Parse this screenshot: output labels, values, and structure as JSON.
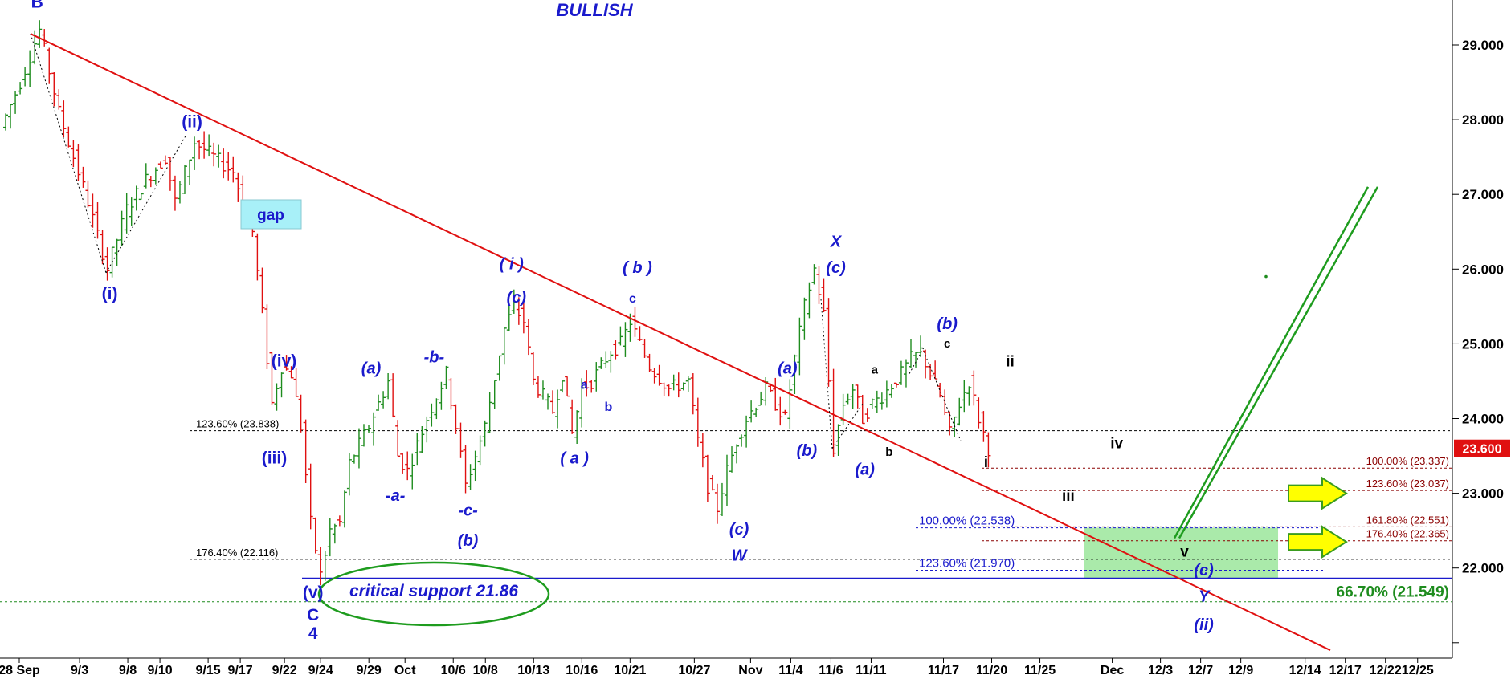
{
  "chart_data": {
    "type": "candlestick",
    "title": "BULLISH",
    "y_range": [
      20.9,
      29.7
    ],
    "y_ticks": [
      "29.000",
      "28.000",
      "27.000",
      "26.000",
      "25.000",
      "24.000",
      "23.000",
      "22.000"
    ],
    "x_ticks": [
      "28 Sep",
      "9/3",
      "9/8",
      "9/10",
      "9/15",
      "9/17",
      "9/22",
      "9/24",
      "9/29",
      "Oct",
      "10/6",
      "10/8",
      "10/13",
      "10/16",
      "10/21",
      "10/27",
      "Nov",
      "11/4",
      "11/6",
      "11/11",
      "11/17",
      "11/20",
      "11/25",
      "Dec",
      "12/3",
      "12/7",
      "12/9",
      "12/14",
      "12/17",
      "12/22",
      "12/25"
    ],
    "last_price": "23.600",
    "colors": {
      "up": "#1e8c1e",
      "down": "#e01010",
      "trendline": "#e01010",
      "wave_label": "#1a1acc",
      "support": "#1a1acc",
      "target_zone": "#9be69b",
      "arrow": "#ffff00"
    },
    "price_path": [
      [
        0,
        27.9
      ],
      [
        2,
        28.5
      ],
      [
        4,
        29.2
      ],
      [
        6,
        28.1
      ],
      [
        9,
        26.9
      ],
      [
        11,
        26.0
      ],
      [
        13,
        26.8
      ],
      [
        15,
        27.2
      ],
      [
        17,
        27.5
      ],
      [
        18,
        26.9
      ],
      [
        20,
        27.7
      ],
      [
        22,
        27.5
      ],
      [
        24,
        27.3
      ],
      [
        26,
        26.5
      ],
      [
        27,
        25.4
      ],
      [
        28,
        24.2
      ],
      [
        29,
        24.7
      ],
      [
        30,
        24.6
      ],
      [
        31,
        23.9
      ],
      [
        32,
        22.6
      ],
      [
        33,
        21.9
      ],
      [
        34,
        22.5
      ],
      [
        35,
        22.6
      ],
      [
        36,
        23.4
      ],
      [
        38,
        23.9
      ],
      [
        40,
        24.5
      ],
      [
        41,
        23.5
      ],
      [
        42,
        23.3
      ],
      [
        44,
        24.0
      ],
      [
        46,
        24.6
      ],
      [
        47,
        23.9
      ],
      [
        48,
        23.1
      ],
      [
        49,
        23.5
      ],
      [
        50,
        23.9
      ],
      [
        52,
        25.2
      ],
      [
        53,
        25.5
      ],
      [
        54,
        25.3
      ],
      [
        55,
        24.5
      ],
      [
        56,
        24.3
      ],
      [
        57,
        24.1
      ],
      [
        58,
        24.6
      ],
      [
        59,
        23.8
      ],
      [
        60,
        24.4
      ],
      [
        61,
        24.5
      ],
      [
        63,
        24.9
      ],
      [
        64,
        25.0
      ],
      [
        65,
        25.3
      ],
      [
        66,
        25.0
      ],
      [
        67,
        24.7
      ],
      [
        69,
        24.4
      ],
      [
        71,
        24.5
      ],
      [
        72,
        23.7
      ],
      [
        73,
        23.1
      ],
      [
        74,
        22.8
      ],
      [
        75,
        23.3
      ],
      [
        76,
        23.7
      ],
      [
        77,
        24.0
      ],
      [
        79,
        24.4
      ],
      [
        80,
        24.2
      ],
      [
        81,
        24.0
      ],
      [
        82,
        24.8
      ],
      [
        83,
        25.5
      ],
      [
        84,
        26.0
      ],
      [
        85,
        25.4
      ],
      [
        86,
        23.6
      ],
      [
        87,
        24.2
      ],
      [
        88,
        24.4
      ],
      [
        89,
        24.0
      ],
      [
        90,
        24.2
      ],
      [
        91,
        24.3
      ],
      [
        93,
        24.6
      ],
      [
        94,
        24.8
      ],
      [
        95,
        24.9
      ],
      [
        96,
        24.6
      ],
      [
        97,
        24.3
      ],
      [
        98,
        23.8
      ],
      [
        99,
        24.2
      ],
      [
        100,
        24.5
      ],
      [
        101,
        24.0
      ],
      [
        102,
        23.6
      ]
    ],
    "trendlines": [
      {
        "name": "primary-downtrend",
        "from": [
          4,
          29.15
        ],
        "to": [
          140,
          20.9
        ]
      },
      {
        "name": "projection-rise-1",
        "from": [
          122,
          22.4
        ],
        "to": [
          143,
          27.1
        ]
      },
      {
        "name": "projection-rise-2",
        "from": [
          124,
          22.4
        ],
        "to": [
          145,
          27.1
        ]
      }
    ],
    "fib_levels": [
      {
        "label": "123.60% (23.838)",
        "value": 23.838,
        "color": "#000000",
        "side": "left"
      },
      {
        "label": "176.40% (22.116)",
        "value": 22.116,
        "color": "#000000",
        "side": "left"
      },
      {
        "label": "100.00% (23.337)",
        "value": 23.337,
        "color": "#8b0000",
        "side": "right"
      },
      {
        "label": "123.60% (23.037)",
        "value": 23.037,
        "color": "#8b0000",
        "side": "right"
      },
      {
        "label": "161.80% (22.551)",
        "value": 22.551,
        "color": "#8b0000",
        "side": "right"
      },
      {
        "label": "176.40% (22.365)",
        "value": 22.365,
        "color": "#8b0000",
        "side": "right"
      },
      {
        "label": "100.00% (22.538)",
        "value": 22.538,
        "color": "#1a1acc",
        "side": "mid"
      },
      {
        "label": "123.60% (21.970)",
        "value": 21.97,
        "color": "#1a1acc",
        "side": "mid"
      }
    ],
    "support": {
      "label": "critical support 21.86",
      "value": 21.86
    },
    "retrace_level": {
      "label": "66.70% (21.549)",
      "value": 21.549
    },
    "target_zone": {
      "from_index": 112,
      "to_index": 132,
      "low": 21.86,
      "high": 22.54
    },
    "gap_label": "gap",
    "wave_labels": [
      {
        "text": "B",
        "i": 3.5,
        "v": 29.5,
        "style": "blue"
      },
      {
        "text": "(i)",
        "i": 11,
        "v": 25.6,
        "style": "blue"
      },
      {
        "text": "(ii)",
        "i": 19.5,
        "v": 27.9,
        "style": "blue"
      },
      {
        "text": "(iv)",
        "i": 29,
        "v": 24.7,
        "style": "blue"
      },
      {
        "text": "(iii)",
        "i": 28,
        "v": 23.4,
        "style": "blue"
      },
      {
        "text": "(v)",
        "i": 32,
        "v": 21.6,
        "style": "blue"
      },
      {
        "text": "C",
        "i": 32,
        "v": 21.3,
        "style": "blue"
      },
      {
        "text": "4",
        "i": 32,
        "v": 21.05,
        "style": "blue"
      },
      {
        "text": "(a)",
        "i": 38,
        "v": 24.6,
        "style": "blue-it"
      },
      {
        "text": "-a-",
        "i": 40.5,
        "v": 22.9,
        "style": "blue-it"
      },
      {
        "text": "-b-",
        "i": 44.5,
        "v": 24.75,
        "style": "blue-it"
      },
      {
        "text": "-c-",
        "i": 48,
        "v": 22.7,
        "style": "blue-it"
      },
      {
        "text": "(b)",
        "i": 48,
        "v": 22.3,
        "style": "blue-it"
      },
      {
        "text": "( i )",
        "i": 52.5,
        "v": 26.0,
        "style": "blue-it"
      },
      {
        "text": "(c)",
        "i": 53,
        "v": 25.55,
        "style": "blue-it"
      },
      {
        "text": "( a )",
        "i": 59,
        "v": 23.4,
        "style": "blue-it"
      },
      {
        "text": "a",
        "i": 60,
        "v": 24.4,
        "style": "blue-small"
      },
      {
        "text": "b",
        "i": 62.5,
        "v": 24.1,
        "style": "blue-small"
      },
      {
        "text": "( b )",
        "i": 65.5,
        "v": 25.95,
        "style": "blue-it"
      },
      {
        "text": "c",
        "i": 65,
        "v": 25.55,
        "style": "blue-small"
      },
      {
        "text": "(c)",
        "i": 76,
        "v": 22.45,
        "style": "blue-it"
      },
      {
        "text": "W",
        "i": 76,
        "v": 22.1,
        "style": "blue-it"
      },
      {
        "text": "(a)",
        "i": 81,
        "v": 24.6,
        "style": "blue-it"
      },
      {
        "text": "(b)",
        "i": 83,
        "v": 23.5,
        "style": "blue-it"
      },
      {
        "text": "X",
        "i": 86,
        "v": 26.3,
        "style": "blue-it"
      },
      {
        "text": "(c)",
        "i": 86,
        "v": 25.95,
        "style": "blue-it"
      },
      {
        "text": "(a)",
        "i": 89,
        "v": 23.25,
        "style": "blue-it"
      },
      {
        "text": "a",
        "i": 90,
        "v": 24.6,
        "style": "black-small"
      },
      {
        "text": "b",
        "i": 91.5,
        "v": 23.5,
        "style": "black-small"
      },
      {
        "text": "(b)",
        "i": 97.5,
        "v": 25.2,
        "style": "blue-it"
      },
      {
        "text": "c",
        "i": 97.5,
        "v": 24.95,
        "style": "black-small"
      },
      {
        "text": "i",
        "i": 101.5,
        "v": 23.35,
        "style": "black"
      },
      {
        "text": "ii",
        "i": 104,
        "v": 24.7,
        "style": "black"
      },
      {
        "text": "iv",
        "i": 115,
        "v": 23.6,
        "style": "black"
      },
      {
        "text": "iii",
        "i": 110,
        "v": 22.9,
        "style": "black"
      },
      {
        "text": "v",
        "i": 122,
        "v": 22.15,
        "style": "black"
      },
      {
        "text": "(c)",
        "i": 124,
        "v": 21.9,
        "style": "blue-it"
      },
      {
        "text": "Y",
        "i": 124,
        "v": 21.55,
        "style": "blue-it"
      },
      {
        "text": "(ii)",
        "i": 124,
        "v": 21.17,
        "style": "blue-it"
      }
    ]
  }
}
